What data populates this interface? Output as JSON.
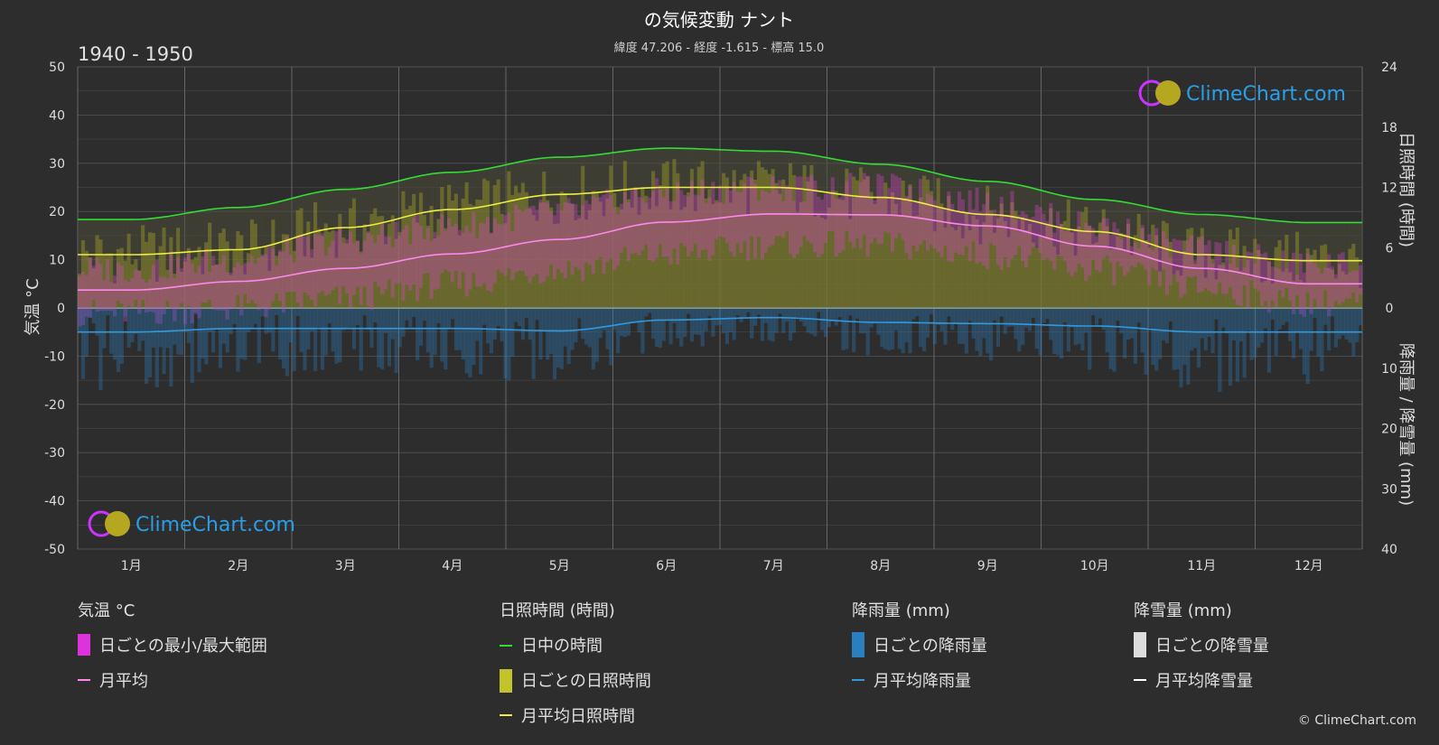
{
  "header": {
    "title": "の気候変動 ナント",
    "subtitle": "緯度 47.206 - 経度 -1.615 - 標高 15.0",
    "period": "1940 - 1950"
  },
  "axes": {
    "left_label": "気温 °C",
    "right_top_label": "日照時間 (時間)",
    "right_bottom_label": "降雨量 / 降雪量 (mm)"
  },
  "logo": {
    "text": "ClimeChart.com"
  },
  "copyright": "© ClimeChart.com",
  "legend": {
    "temperature": {
      "heading": "気温 °C",
      "range": "日ごとの最小/最大範囲",
      "mean": "月平均"
    },
    "sunshine": {
      "heading": "日照時間 (時間)",
      "daylight": "日中の時間",
      "daily": "日ごとの日照時間",
      "mean": "月平均日照時間"
    },
    "rain": {
      "heading": "降雨量 (mm)",
      "daily": "日ごとの降雨量",
      "mean": "月平均降雨量"
    },
    "snow": {
      "heading": "降雪量 (mm)",
      "daily": "日ごとの降雪量",
      "mean": "月平均降雪量"
    }
  },
  "colors": {
    "background": "#2d2d2d",
    "grid": "#555555",
    "daylight": "#33dd33",
    "sunshine_mean": "#eeee44",
    "sunshine_fill": "#8a8a2a",
    "temp_range": "#dd44cc",
    "temp_mean": "#ff88ee",
    "rain": "#2a7fc0",
    "rain_mean": "#3399dd",
    "snow": "#dddddd"
  },
  "chart_data": {
    "type": "line",
    "categories": [
      "1月",
      "2月",
      "3月",
      "4月",
      "5月",
      "6月",
      "7月",
      "8月",
      "9月",
      "10月",
      "11月",
      "12月"
    ],
    "left_axis": {
      "label": "気温 °C",
      "ylim": [
        -50,
        50
      ],
      "ticks": [
        50,
        40,
        30,
        20,
        10,
        0,
        -10,
        -20,
        -30,
        -40,
        -50
      ]
    },
    "right_axis_top": {
      "label": "日照時間 (時間)",
      "ylim": [
        0,
        24
      ],
      "ticks": [
        24,
        18,
        12,
        6,
        0
      ]
    },
    "right_axis_bottom": {
      "label": "降雨量 / 降雪量 (mm)",
      "ylim": [
        0,
        40
      ],
      "ticks": [
        0,
        10,
        20,
        30,
        40
      ]
    },
    "series": [
      {
        "name": "日中の時間",
        "axis": "sunshine",
        "values": [
          8.8,
          10.0,
          11.8,
          13.5,
          15.0,
          15.9,
          15.6,
          14.3,
          12.6,
          10.8,
          9.3,
          8.5
        ]
      },
      {
        "name": "月平均日照時間",
        "axis": "sunshine",
        "values": [
          5.3,
          5.8,
          8.0,
          9.8,
          11.3,
          12.0,
          12.0,
          11.0,
          9.3,
          7.6,
          5.3,
          4.7
        ]
      },
      {
        "name": "月平均",
        "axis": "temperature",
        "values": [
          3.7,
          5.5,
          8.2,
          11.2,
          14.2,
          17.8,
          19.5,
          19.3,
          17.0,
          12.8,
          8.2,
          5.0
        ]
      },
      {
        "name": "月平均降雨量",
        "axis": "precipitation",
        "values": [
          4.0,
          3.4,
          3.4,
          3.4,
          3.8,
          2.0,
          1.6,
          2.4,
          2.6,
          3.0,
          4.0,
          4.0
        ]
      },
      {
        "name": "日ごとの最小/最大範囲",
        "axis": "temperature",
        "lower": [
          -1,
          0,
          2,
          5,
          8,
          11,
          13,
          13,
          11,
          8,
          4,
          1
        ],
        "upper": [
          8,
          10,
          14,
          17,
          20,
          24,
          25,
          25,
          22,
          17,
          12,
          9
        ]
      }
    ],
    "grid": true,
    "legend_position": "bottom"
  }
}
